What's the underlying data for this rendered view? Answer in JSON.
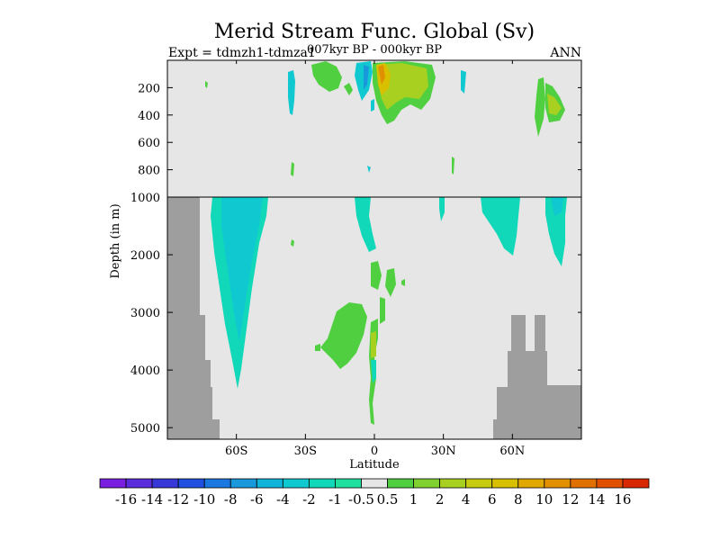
{
  "chart_data": {
    "type": "heatmap",
    "title": "Merid Stream Func. Global (Sv)",
    "subtitle_left": "Expt = tdmzh1-tdmza1",
    "subtitle_center": "007kyr BP - 000kyr BP",
    "subtitle_right": "ANN",
    "xlabel": "Latitude",
    "ylabel": "Depth (in m)",
    "xlim": [
      -90,
      90
    ],
    "upper_panel_ylim": [
      0,
      1000
    ],
    "lower_panel_ylim": [
      1000,
      5200
    ],
    "x_ticks": [
      {
        "value": -60,
        "label": "60S"
      },
      {
        "value": -30,
        "label": "30S"
      },
      {
        "value": 0,
        "label": "0"
      },
      {
        "value": 30,
        "label": "30N"
      },
      {
        "value": 60,
        "label": "60N"
      }
    ],
    "upper_y_ticks": [
      {
        "value": 200,
        "label": "200"
      },
      {
        "value": 400,
        "label": "400"
      },
      {
        "value": 600,
        "label": "600"
      },
      {
        "value": 800,
        "label": "800"
      }
    ],
    "lower_y_ticks": [
      {
        "value": 1000,
        "label": "1000"
      },
      {
        "value": 2000,
        "label": "2000"
      },
      {
        "value": 3000,
        "label": "3000"
      },
      {
        "value": 4000,
        "label": "4000"
      },
      {
        "value": 5000,
        "label": "5000"
      }
    ],
    "background_color": "#e6e6e6",
    "land_color": "#9e9e9e",
    "colorbar": {
      "labels": [
        "-16",
        "-14",
        "-12",
        "-10",
        "-8",
        "-6",
        "-4",
        "-2",
        "-1",
        "-0.5",
        "0.5",
        "1",
        "2",
        "4",
        "6",
        "8",
        "10",
        "12",
        "14",
        "16"
      ],
      "colors": [
        "#7a1ee0",
        "#5a2cdc",
        "#3838d8",
        "#2050e0",
        "#1a78e0",
        "#1a98dc",
        "#10b4d8",
        "#10c8d0",
        "#10d8b8",
        "#20e0a0",
        "#e6e6e6",
        "#50d040",
        "#80d030",
        "#a8d020",
        "#c8cc10",
        "#d8c000",
        "#e0a800",
        "#e09000",
        "#e07000",
        "#e05000",
        "#d82800"
      ]
    }
  }
}
